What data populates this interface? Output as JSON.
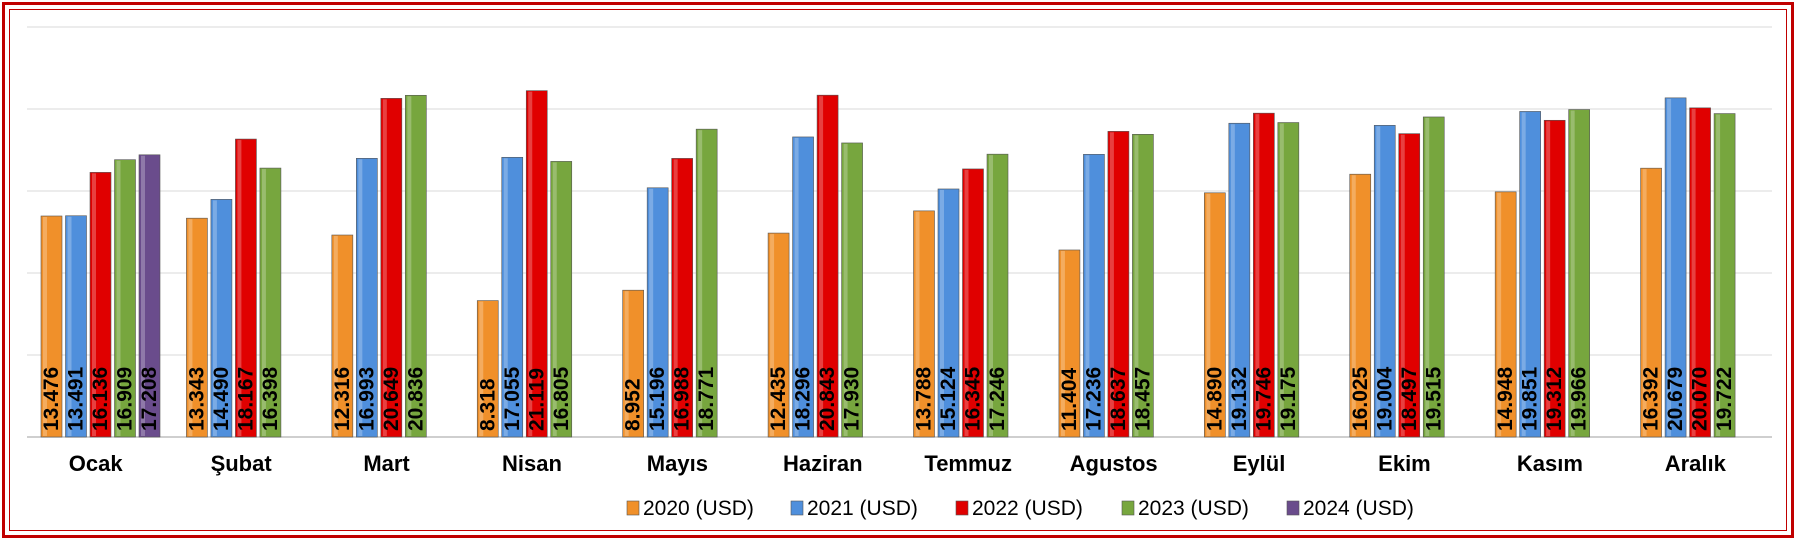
{
  "chart_data": {
    "type": "bar",
    "title": "",
    "xlabel": "",
    "ylabel": "",
    "ylim": [
      0,
      25000
    ],
    "grid": true,
    "legend_position": "bottom",
    "categories": [
      "Ocak",
      "Şubat",
      "Mart",
      "Nisan",
      "Mayıs",
      "Haziran",
      "Temmuz",
      "Agustos",
      "Eylül",
      "Ekim",
      "Kasım",
      "Aralık"
    ],
    "series": [
      {
        "name": "2020 (USD)",
        "color": "#f0902a",
        "values": [
          13476,
          13343,
          12316,
          8318,
          8952,
          12435,
          13788,
          11404,
          14890,
          16025,
          14948,
          16392
        ],
        "labels": [
          "13.476",
          "13.343",
          "12.316",
          "8.318",
          "8.952",
          "12.435",
          "13.788",
          "11.404",
          "14.890",
          "16.025",
          "14.948",
          "16.392"
        ]
      },
      {
        "name": "2021 (USD)",
        "color": "#4f8fdc",
        "values": [
          13491,
          14490,
          16993,
          17055,
          15196,
          18296,
          15124,
          17236,
          19132,
          19004,
          19851,
          20679
        ],
        "labels": [
          "13.491",
          "14.490",
          "16.993",
          "17.055",
          "15.196",
          "18.296",
          "15.124",
          "17.236",
          "19.132",
          "19.004",
          "19.851",
          "20.679"
        ]
      },
      {
        "name": "2022 (USD)",
        "color": "#e00000",
        "values": [
          16136,
          18167,
          20649,
          21119,
          16988,
          20843,
          16345,
          18637,
          19746,
          18497,
          19312,
          20070
        ],
        "labels": [
          "16.136",
          "18.167",
          "20.649",
          "21.119",
          "16.988",
          "20.843",
          "16.345",
          "18.637",
          "19.746",
          "18.497",
          "19.312",
          "20.070"
        ]
      },
      {
        "name": "2023 (USD)",
        "color": "#77a63e",
        "values": [
          16909,
          16398,
          20836,
          16805,
          18771,
          17930,
          17246,
          18457,
          19175,
          19515,
          19966,
          19722
        ],
        "labels": [
          "16.909",
          "16.398",
          "20.836",
          "16.805",
          "18.771",
          "17.930",
          "17.246",
          "18.457",
          "19.175",
          "19.515",
          "19.966",
          "19.722"
        ]
      },
      {
        "name": "2024 (USD)",
        "color": "#6a4c8c",
        "values": [
          17208,
          null,
          null,
          null,
          null,
          null,
          null,
          null,
          null,
          null,
          null,
          null
        ],
        "labels": [
          "17.208",
          "",
          "",
          "",
          "",
          "",
          "",
          "",
          "",
          "",
          "",
          ""
        ]
      }
    ]
  }
}
